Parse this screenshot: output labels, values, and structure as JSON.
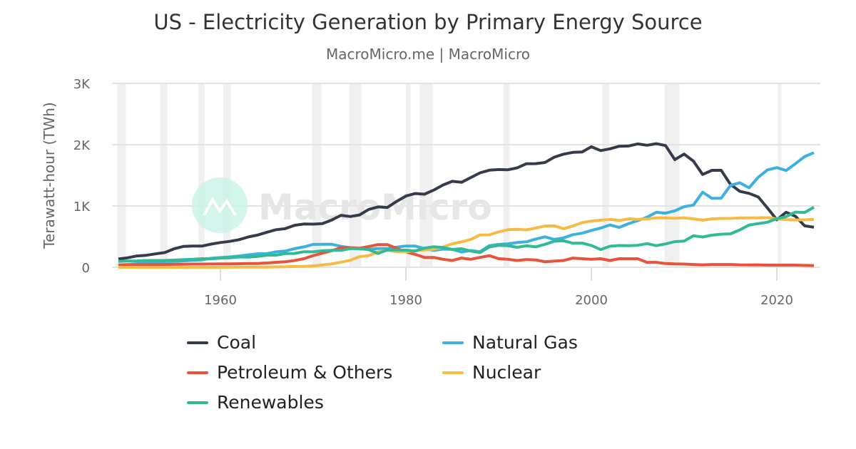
{
  "title": "US - Electricity Generation by Primary Energy Source",
  "subtitle": "MacroMicro.me | MacroMicro",
  "watermark": "MacroMicro",
  "chart_data": {
    "type": "line",
    "title": "US - Electricity Generation by Primary Energy Source",
    "ylabel": "Terawatt-hour (TWh)",
    "xlabel": "",
    "ylim": [
      0,
      3000
    ],
    "xlim": [
      1948,
      2025
    ],
    "yticks": [
      {
        "v": 0,
        "label": "0"
      },
      {
        "v": 1000,
        "label": "1K"
      },
      {
        "v": 2000,
        "label": "2K"
      },
      {
        "v": 3000,
        "label": "3K"
      }
    ],
    "xticks": [
      {
        "v": 1960,
        "label": "1960"
      },
      {
        "v": 1980,
        "label": "1980"
      },
      {
        "v": 2000,
        "label": "2000"
      },
      {
        "v": 2020,
        "label": "2020"
      }
    ],
    "grid": true,
    "legend_position": "bottom",
    "recession_shading": [
      [
        1948.9,
        1949.8
      ],
      [
        1953.5,
        1954.3
      ],
      [
        1957.6,
        1958.3
      ],
      [
        1960.3,
        1961.1
      ],
      [
        1969.9,
        1970.9
      ],
      [
        1973.9,
        1975.2
      ],
      [
        1980.0,
        1980.5
      ],
      [
        1981.5,
        1982.9
      ],
      [
        1990.5,
        1991.2
      ],
      [
        2001.2,
        2001.9
      ],
      [
        2007.9,
        2009.5
      ],
      [
        2020.1,
        2020.4
      ]
    ],
    "x_start": 1949,
    "series": [
      {
        "name": "Coal",
        "color": "#363b4c",
        "values": [
          135,
          155,
          185,
          195,
          219,
          239,
          301,
          339,
          346,
          345,
          378,
          403,
          422,
          450,
          494,
          526,
          571,
          613,
          630,
          685,
          706,
          704,
          713,
          771,
          848,
          828,
          853,
          944,
          985,
          976,
          1075,
          1162,
          1203,
          1192,
          1259,
          1342,
          1402,
          1386,
          1464,
          1541,
          1584,
          1594,
          1591,
          1621,
          1690,
          1691,
          1709,
          1796,
          1845,
          1874,
          1881,
          1966,
          1904,
          1933,
          1974,
          1978,
          2013,
          1991,
          2016,
          1986,
          1756,
          1847,
          1733,
          1514,
          1581,
          1582,
          1352,
          1239,
          1206,
          1146,
          965,
          774,
          898,
          832,
          675,
          653
        ]
      },
      {
        "name": "Natural Gas",
        "color": "#3cb0de",
        "values": [
          37,
          45,
          57,
          69,
          82,
          94,
          95,
          104,
          114,
          120,
          147,
          158,
          169,
          184,
          202,
          220,
          222,
          251,
          265,
          304,
          333,
          373,
          374,
          376,
          341,
          320,
          300,
          295,
          306,
          305,
          329,
          346,
          346,
          305,
          274,
          297,
          292,
          249,
          273,
          253,
          352,
          373,
          382,
          404,
          415,
          460,
          496,
          455,
          479,
          531,
          556,
          601,
          639,
          691,
          650,
          710,
          761,
          816,
          897,
          883,
          921,
          988,
          1014,
          1226,
          1124,
          1127,
          1335,
          1379,
          1296,
          1469,
          1589,
          1626,
          1579,
          1690,
          1806,
          1870
        ]
      },
      {
        "name": "Petroleum & Others",
        "color": "#e8533b",
        "values": [
          35,
          38,
          40,
          42,
          44,
          46,
          48,
          50,
          52,
          52,
          54,
          55,
          56,
          58,
          60,
          62,
          70,
          80,
          90,
          110,
          140,
          190,
          230,
          270,
          320,
          320,
          310,
          340,
          370,
          370,
          310,
          250,
          210,
          160,
          160,
          130,
          110,
          150,
          130,
          160,
          190,
          140,
          130,
          110,
          125,
          120,
          90,
          100,
          110,
          150,
          140,
          130,
          140,
          110,
          140,
          140,
          140,
          80,
          80,
          60,
          55,
          52,
          45,
          40,
          45,
          45,
          45,
          40,
          38,
          40,
          35,
          35,
          35,
          35,
          30,
          28
        ]
      },
      {
        "name": "Nuclear",
        "color": "#f6bb43",
        "values": [
          0,
          0,
          0,
          0,
          0,
          0,
          0,
          0,
          0,
          0.2,
          0.2,
          0.5,
          1.7,
          2.3,
          3.2,
          3.3,
          3.7,
          5.5,
          7.7,
          12.5,
          13.9,
          21.8,
          38.1,
          54.1,
          83.5,
          114,
          173,
          191,
          251,
          276,
          255,
          251,
          273,
          283,
          294,
          328,
          384,
          414,
          455,
          527,
          529,
          577,
          613,
          619,
          610,
          640,
          673,
          675,
          629,
          673,
          728,
          754,
          769,
          780,
          764,
          789,
          782,
          787,
          806,
          806,
          799,
          807,
          790,
          769,
          789,
          797,
          797,
          806,
          805,
          807,
          809,
          790,
          778,
          772,
          775,
          782
        ]
      },
      {
        "name": "Renewables",
        "color": "#2fbb94",
        "values": [
          95,
          101,
          104,
          110,
          110,
          112,
          116,
          123,
          130,
          140,
          138,
          149,
          153,
          169,
          166,
          177,
          197,
          198,
          224,
          225,
          253,
          251,
          270,
          276,
          276,
          304,
          304,
          287,
          224,
          284,
          283,
          279,
          264,
          313,
          335,
          323,
          292,
          302,
          264,
          240,
          331,
          357,
          352,
          326,
          350,
          333,
          375,
          424,
          433,
          393,
          394,
          356,
          288,
          343,
          355,
          351,
          358,
          386,
          352,
          381,
          417,
          427,
          514,
          494,
          523,
          540,
          545,
          609,
          688,
          713,
          735,
          792,
          826,
          900,
          894,
          980
        ]
      }
    ]
  },
  "legend": [
    {
      "label": "Coal",
      "color": "#363b4c"
    },
    {
      "label": "Natural Gas",
      "color": "#3cb0de"
    },
    {
      "label": "Petroleum & Others",
      "color": "#e8533b"
    },
    {
      "label": "Nuclear",
      "color": "#f6bb43"
    },
    {
      "label": "Renewables",
      "color": "#2fbb94"
    }
  ]
}
